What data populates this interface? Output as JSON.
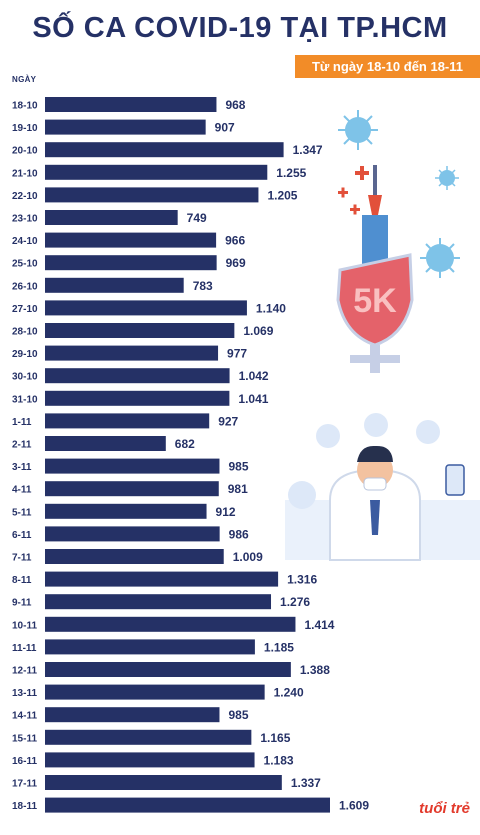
{
  "header": {
    "title": "SỐ CA COVID-19 TẠI TP.HCM",
    "subtitle": "Từ ngày 18-10 đến 18-11"
  },
  "brand": {
    "logo_text": "tuổi trẻ"
  },
  "colors": {
    "bar": "#253166",
    "accent": "#f28c28",
    "logo": "#e23a2c"
  },
  "chart_data": {
    "type": "bar",
    "orientation": "horizontal",
    "ylabel": "NGÀY",
    "categories": [
      "18-10",
      "19-10",
      "20-10",
      "21-10",
      "22-10",
      "23-10",
      "24-10",
      "25-10",
      "26-10",
      "27-10",
      "28-10",
      "29-10",
      "30-10",
      "31-10",
      "1-11",
      "2-11",
      "3-11",
      "4-11",
      "5-11",
      "6-11",
      "7-11",
      "8-11",
      "9-11",
      "10-11",
      "11-11",
      "12-11",
      "13-11",
      "14-11",
      "15-11",
      "16-11",
      "17-11",
      "18-11"
    ],
    "values": [
      968,
      907,
      1347,
      1255,
      1205,
      749,
      966,
      969,
      783,
      1140,
      1069,
      977,
      1042,
      1041,
      927,
      682,
      985,
      981,
      912,
      986,
      1009,
      1316,
      1276,
      1414,
      1185,
      1388,
      1240,
      985,
      1165,
      1183,
      1337,
      1609
    ],
    "value_labels": [
      "968",
      "907",
      "1.347",
      "1.255",
      "1.205",
      "749",
      "966",
      "969",
      "783",
      "1.140",
      "1.069",
      "977",
      "1.042",
      "1.041",
      "927",
      "682",
      "985",
      "981",
      "912",
      "986",
      "1.009",
      "1.316",
      "1.276",
      "1.414",
      "1.185",
      "1.388",
      "1.240",
      "985",
      "1.165",
      "1.183",
      "1.337",
      "1.609"
    ]
  }
}
